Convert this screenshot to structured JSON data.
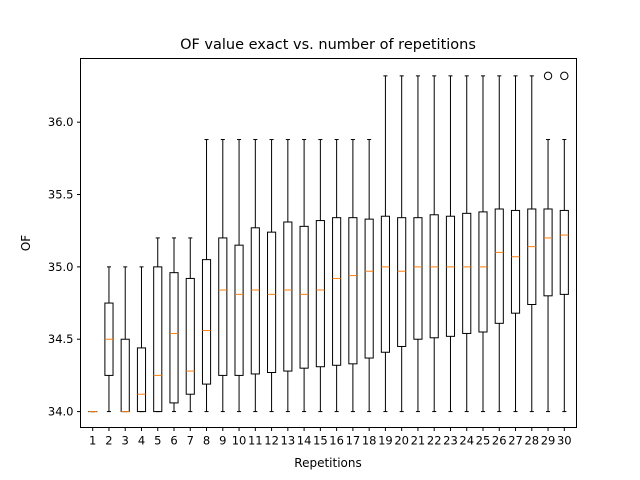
{
  "chart_data": {
    "type": "box",
    "title": "OF value exact vs. number of repetitions",
    "xlabel": "Repetitions",
    "ylabel": "OF",
    "ylim": [
      33.89,
      36.44
    ],
    "yticks": [
      34.0,
      34.5,
      35.0,
      35.5,
      36.0
    ],
    "ytick_labels": [
      "34.0",
      "34.5",
      "35.0",
      "35.5",
      "36.0"
    ],
    "categories": [
      "1",
      "2",
      "3",
      "4",
      "5",
      "6",
      "7",
      "8",
      "9",
      "10",
      "11",
      "12",
      "13",
      "14",
      "15",
      "16",
      "17",
      "18",
      "19",
      "20",
      "21",
      "22",
      "23",
      "24",
      "25",
      "26",
      "27",
      "28",
      "29",
      "30"
    ],
    "boxes": [
      {
        "whislo": 34.0,
        "q1": 34.0,
        "med": 34.0,
        "q3": 34.0,
        "whishi": 34.0,
        "fliers": []
      },
      {
        "whislo": 34.0,
        "q1": 34.25,
        "med": 34.5,
        "q3": 34.75,
        "whishi": 35.0,
        "fliers": []
      },
      {
        "whislo": 34.0,
        "q1": 34.0,
        "med": 34.0,
        "q3": 34.5,
        "whishi": 35.0,
        "fliers": []
      },
      {
        "whislo": 34.0,
        "q1": 34.0,
        "med": 34.12,
        "q3": 34.44,
        "whishi": 35.0,
        "fliers": []
      },
      {
        "whislo": 34.0,
        "q1": 34.0,
        "med": 34.25,
        "q3": 35.0,
        "whishi": 35.2,
        "fliers": []
      },
      {
        "whislo": 34.0,
        "q1": 34.06,
        "med": 34.54,
        "q3": 34.96,
        "whishi": 35.2,
        "fliers": []
      },
      {
        "whislo": 34.0,
        "q1": 34.12,
        "med": 34.28,
        "q3": 34.92,
        "whishi": 35.2,
        "fliers": []
      },
      {
        "whislo": 34.0,
        "q1": 34.19,
        "med": 34.56,
        "q3": 35.05,
        "whishi": 35.88,
        "fliers": []
      },
      {
        "whislo": 34.0,
        "q1": 34.25,
        "med": 34.84,
        "q3": 35.2,
        "whishi": 35.88,
        "fliers": []
      },
      {
        "whislo": 34.0,
        "q1": 34.25,
        "med": 34.81,
        "q3": 35.15,
        "whishi": 35.88,
        "fliers": []
      },
      {
        "whislo": 34.0,
        "q1": 34.26,
        "med": 34.84,
        "q3": 35.27,
        "whishi": 35.88,
        "fliers": []
      },
      {
        "whislo": 34.0,
        "q1": 34.27,
        "med": 34.81,
        "q3": 35.24,
        "whishi": 35.88,
        "fliers": []
      },
      {
        "whislo": 34.0,
        "q1": 34.28,
        "med": 34.84,
        "q3": 35.31,
        "whishi": 35.88,
        "fliers": []
      },
      {
        "whislo": 34.0,
        "q1": 34.3,
        "med": 34.81,
        "q3": 35.28,
        "whishi": 35.88,
        "fliers": []
      },
      {
        "whislo": 34.0,
        "q1": 34.31,
        "med": 34.84,
        "q3": 35.32,
        "whishi": 35.88,
        "fliers": []
      },
      {
        "whislo": 34.0,
        "q1": 34.32,
        "med": 34.92,
        "q3": 35.34,
        "whishi": 35.88,
        "fliers": []
      },
      {
        "whislo": 34.0,
        "q1": 34.33,
        "med": 34.94,
        "q3": 35.34,
        "whishi": 35.88,
        "fliers": []
      },
      {
        "whislo": 34.0,
        "q1": 34.37,
        "med": 34.97,
        "q3": 35.33,
        "whishi": 35.88,
        "fliers": []
      },
      {
        "whislo": 34.0,
        "q1": 34.41,
        "med": 35.0,
        "q3": 35.35,
        "whishi": 36.32,
        "fliers": []
      },
      {
        "whislo": 34.0,
        "q1": 34.45,
        "med": 34.97,
        "q3": 35.34,
        "whishi": 36.32,
        "fliers": []
      },
      {
        "whislo": 34.0,
        "q1": 34.5,
        "med": 35.0,
        "q3": 35.34,
        "whishi": 36.32,
        "fliers": []
      },
      {
        "whislo": 34.0,
        "q1": 34.51,
        "med": 35.0,
        "q3": 35.36,
        "whishi": 36.32,
        "fliers": []
      },
      {
        "whislo": 34.0,
        "q1": 34.52,
        "med": 35.0,
        "q3": 35.35,
        "whishi": 36.32,
        "fliers": []
      },
      {
        "whislo": 34.0,
        "q1": 34.54,
        "med": 35.0,
        "q3": 35.37,
        "whishi": 36.32,
        "fliers": []
      },
      {
        "whislo": 34.0,
        "q1": 34.55,
        "med": 35.0,
        "q3": 35.38,
        "whishi": 36.32,
        "fliers": []
      },
      {
        "whislo": 34.0,
        "q1": 34.61,
        "med": 35.1,
        "q3": 35.4,
        "whishi": 36.32,
        "fliers": []
      },
      {
        "whislo": 34.0,
        "q1": 34.68,
        "med": 35.07,
        "q3": 35.39,
        "whishi": 36.32,
        "fliers": []
      },
      {
        "whislo": 34.0,
        "q1": 34.74,
        "med": 35.14,
        "q3": 35.4,
        "whishi": 36.32,
        "fliers": []
      },
      {
        "whislo": 34.0,
        "q1": 34.8,
        "med": 35.2,
        "q3": 35.4,
        "whishi": 35.88,
        "fliers": [
          36.32
        ]
      },
      {
        "whislo": 34.0,
        "q1": 34.81,
        "med": 35.22,
        "q3": 35.39,
        "whishi": 35.88,
        "fliers": [
          36.32
        ]
      }
    ],
    "colors": {
      "box": "#000000",
      "median": "#ff7f0e",
      "flier": "#000000"
    },
    "grid": false,
    "legend": "none"
  }
}
